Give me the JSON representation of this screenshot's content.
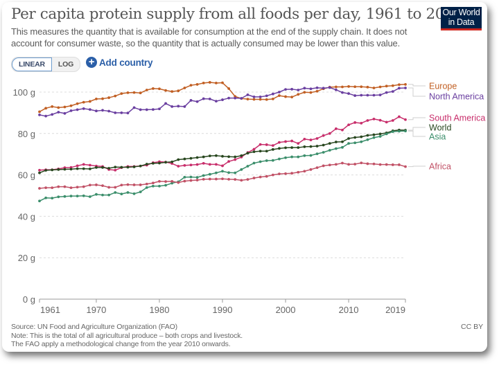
{
  "header": {
    "title": "Per capita protein supply from all foods per day, 1961 to 2019",
    "subtitle": "This measures the quantity that is available for consumption at the end of the supply chain. It does not account for consumer waste, so the quantity that is actually consumed may be lower than this value.",
    "logo_line1": "Our World",
    "logo_line2": "in Data"
  },
  "controls": {
    "linear_label": "LINEAR",
    "log_label": "LOG",
    "active_scale": "linear",
    "add_country_label": "Add country",
    "add_icon": "plus-circle-icon"
  },
  "footer": {
    "source": "Source: UN Food and Agriculture Organization (FAO)",
    "note1": "Note: This is the total of all agricultural produce – both crops and livestock.",
    "note2": "The FAO apply a methodological change from the year 2010 onwards.",
    "license": "CC BY"
  },
  "chart_data": {
    "type": "line",
    "title": "Per capita protein supply from all foods per day, 1961 to 2019",
    "xlabel": "",
    "ylabel": "",
    "x_ticks": [
      1961,
      1970,
      1980,
      1990,
      2000,
      2010,
      2019
    ],
    "y_ticks": [
      0,
      20,
      40,
      60,
      80,
      100
    ],
    "y_tick_labels": [
      "0 g",
      "20 g",
      "40 g",
      "60 g",
      "80 g",
      "100 g"
    ],
    "xlim": [
      1961,
      2019
    ],
    "ylim": [
      0,
      100
    ],
    "grid": "horizontal dashed",
    "legend": "right (line-end labels)",
    "x": [
      1961,
      1962,
      1963,
      1964,
      1965,
      1966,
      1967,
      1968,
      1969,
      1970,
      1971,
      1972,
      1973,
      1974,
      1975,
      1976,
      1977,
      1978,
      1979,
      1980,
      1981,
      1982,
      1983,
      1984,
      1985,
      1986,
      1987,
      1988,
      1989,
      1990,
      1991,
      1992,
      1993,
      1994,
      1995,
      1996,
      1997,
      1998,
      1999,
      2000,
      2001,
      2002,
      2003,
      2004,
      2005,
      2006,
      2007,
      2008,
      2009,
      2010,
      2011,
      2012,
      2013,
      2014,
      2015,
      2016,
      2017,
      2018,
      2019
    ],
    "series": [
      {
        "name": "Europe",
        "color": "#c15f23",
        "values": [
          90.5,
          92.2,
          93.0,
          92.5,
          92.8,
          93.4,
          94.4,
          95.1,
          95.5,
          96.7,
          96.8,
          97.3,
          98.1,
          99.3,
          99.7,
          99.8,
          99.6,
          101.0,
          101.7,
          101.6,
          100.8,
          100.3,
          100.6,
          102.0,
          103.3,
          103.7,
          104.4,
          104.7,
          104.4,
          104.5,
          101.7,
          97.9,
          96.9,
          96.6,
          96.5,
          96.5,
          96.4,
          96.7,
          98.3,
          97.8,
          97.6,
          98.9,
          99.9,
          99.8,
          100.4,
          101.6,
          102.4,
          102.5,
          102.5,
          102.7,
          102.6,
          102.6,
          102.4,
          102.0,
          102.5,
          102.9,
          103.1,
          103.6,
          103.7
        ]
      },
      {
        "name": "North America",
        "color": "#6a3fa0",
        "values": [
          89.0,
          88.4,
          89.2,
          90.3,
          89.7,
          91.0,
          91.5,
          92.0,
          91.6,
          90.9,
          91.2,
          90.8,
          90.0,
          90.0,
          89.9,
          92.5,
          91.5,
          91.5,
          91.6,
          91.9,
          94.5,
          93.0,
          93.2,
          93.0,
          96.0,
          95.4,
          96.8,
          96.7,
          95.6,
          96.3,
          97.1,
          97.1,
          97.0,
          98.7,
          97.7,
          97.7,
          98.2,
          99.1,
          100.0,
          101.3,
          101.4,
          101.0,
          101.9,
          101.6,
          102.1,
          101.9,
          102.2,
          101.1,
          99.8,
          99.3,
          98.3,
          98.5,
          98.5,
          98.5,
          98.6,
          99.8,
          100.3,
          101.9,
          102.0
        ]
      },
      {
        "name": "South America",
        "color": "#c82e6b",
        "values": [
          62.3,
          62.5,
          62.5,
          62.9,
          63.5,
          63.6,
          64.4,
          65.1,
          64.7,
          64.3,
          64.1,
          62.6,
          62.3,
          63.5,
          64.1,
          64.1,
          64.3,
          64.7,
          65.9,
          66.4,
          66.2,
          65.5,
          64.2,
          64.6,
          64.8,
          65.0,
          65.6,
          65.1,
          65.1,
          64.4,
          66.5,
          67.4,
          68.6,
          70.8,
          72.4,
          74.7,
          74.6,
          74.2,
          75.7,
          76.1,
          76.4,
          75.2,
          77.3,
          76.9,
          77.6,
          79.0,
          80.0,
          82.3,
          81.7,
          84.2,
          85.3,
          85.0,
          86.3,
          87.0,
          86.4,
          85.5,
          86.3,
          88.1,
          86.7
        ]
      },
      {
        "name": "World",
        "color": "#28471f",
        "values": [
          61.0,
          62.2,
          62.4,
          62.6,
          62.7,
          62.8,
          63.0,
          63.0,
          62.9,
          63.6,
          63.6,
          63.2,
          63.8,
          63.7,
          63.7,
          63.9,
          64.3,
          65.2,
          65.6,
          65.7,
          66.1,
          66.3,
          67.4,
          67.7,
          68.0,
          68.4,
          68.7,
          69.2,
          69.3,
          69.0,
          68.8,
          68.7,
          69.3,
          70.5,
          71.2,
          71.5,
          71.5,
          72.3,
          72.8,
          73.1,
          73.2,
          73.2,
          73.6,
          73.7,
          73.9,
          74.4,
          75.2,
          75.9,
          76.0,
          77.6,
          78.1,
          78.4,
          79.1,
          79.4,
          79.8,
          80.3,
          81.3,
          81.7,
          81.6
        ]
      },
      {
        "name": "Asia",
        "color": "#3b8e6b",
        "values": [
          47.4,
          48.9,
          48.8,
          49.4,
          49.6,
          49.8,
          49.8,
          49.9,
          49.5,
          50.6,
          50.3,
          50.3,
          51.5,
          50.8,
          51.5,
          50.9,
          51.8,
          53.9,
          54.6,
          54.6,
          55.0,
          56.0,
          56.7,
          58.9,
          59.0,
          58.8,
          59.7,
          60.3,
          61.0,
          61.8,
          61.1,
          61.0,
          62.6,
          64.2,
          65.7,
          66.4,
          66.9,
          67.0,
          67.7,
          68.3,
          68.7,
          68.7,
          69.3,
          69.4,
          70.2,
          70.9,
          71.9,
          72.7,
          73.3,
          75.2,
          75.5,
          76.0,
          77.0,
          78.0,
          78.6,
          79.8,
          80.9,
          81.1,
          81.2
        ]
      },
      {
        "name": "Africa",
        "color": "#c15166",
        "values": [
          53.5,
          53.8,
          53.8,
          54.3,
          54.3,
          53.8,
          54.1,
          54.3,
          55.1,
          55.2,
          54.8,
          54.0,
          54.0,
          55.1,
          55.3,
          55.2,
          55.2,
          55.6,
          56.1,
          56.9,
          56.8,
          56.9,
          56.3,
          57.0,
          57.3,
          57.5,
          57.9,
          58.0,
          58.0,
          58.1,
          57.9,
          57.8,
          57.4,
          57.8,
          58.5,
          59.0,
          59.3,
          60.0,
          60.5,
          60.6,
          60.8,
          61.3,
          61.8,
          62.6,
          63.5,
          64.4,
          64.8,
          65.1,
          65.7,
          65.1,
          65.2,
          65.8,
          65.4,
          65.3,
          65.0,
          65.0,
          64.9,
          64.9,
          64.0
        ]
      }
    ]
  }
}
